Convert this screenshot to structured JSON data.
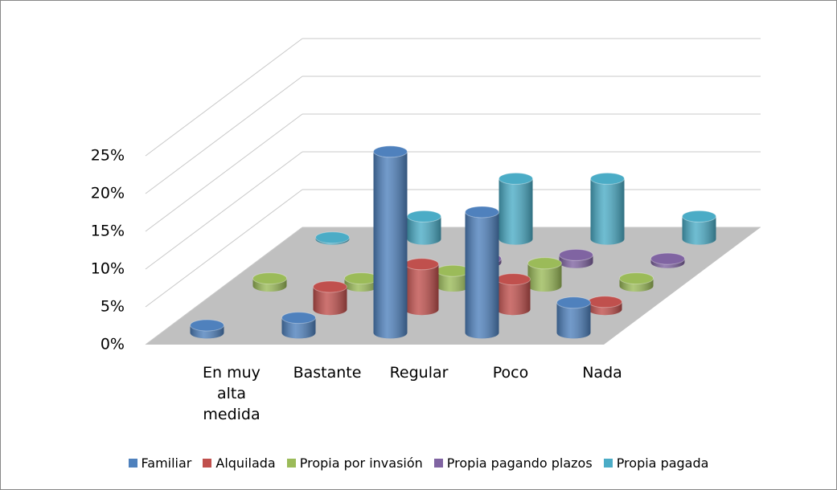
{
  "chart_data": {
    "type": "bar3d",
    "categories": [
      "En muy alta medida",
      "Bastante",
      "Regular",
      "Poco",
      "Nada"
    ],
    "series": [
      {
        "name": "Familiar",
        "color": "#4f81bd",
        "values": [
          1,
          2,
          24,
          16,
          4
        ]
      },
      {
        "name": "Alquilada",
        "color": "#c0504d",
        "values": [
          0,
          3,
          6,
          4,
          1
        ]
      },
      {
        "name": "Propia por invasión",
        "color": "#9bbb59",
        "values": [
          1,
          1,
          2,
          3,
          1
        ]
      },
      {
        "name": "Propia pagando plazos",
        "color": "#8064a2",
        "values": [
          0,
          0,
          0.5,
          1,
          0.5
        ]
      },
      {
        "name": "Propia pagada",
        "color": "#4bacc6",
        "values": [
          0.2,
          3,
          8,
          8,
          3
        ]
      }
    ],
    "ylim": [
      0,
      25
    ],
    "yticks": [
      {
        "value": 0,
        "label": "0%"
      },
      {
        "value": 5,
        "label": "5%"
      },
      {
        "value": 10,
        "label": "10%"
      },
      {
        "value": 15,
        "label": "15%"
      },
      {
        "value": 20,
        "label": "20%"
      },
      {
        "value": 25,
        "label": "25%"
      }
    ],
    "grid": true,
    "legend": "bottom"
  }
}
